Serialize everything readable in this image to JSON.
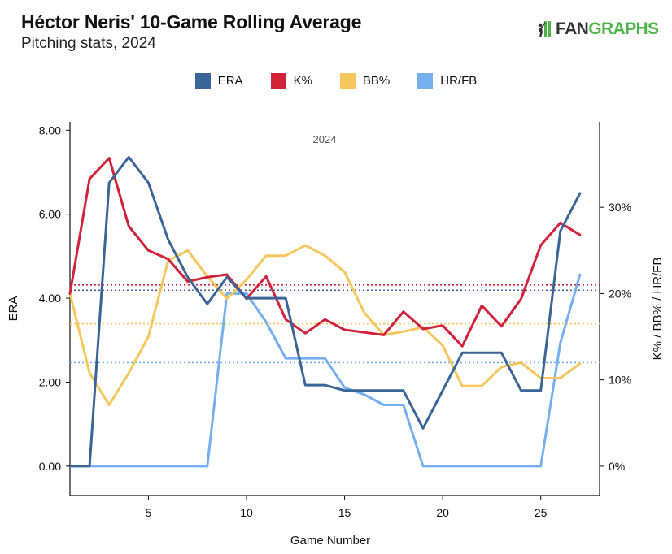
{
  "header": {
    "title": "Héctor Neris' 10-Game Rolling Average",
    "subtitle": "Pitching stats, 2024"
  },
  "logo": {
    "fan": "FAN",
    "graphs": "GRAPHS"
  },
  "colors": {
    "ERA": "#3a6596",
    "K%": "#d1223a",
    "BB%": "#f5c75d",
    "HR/FB": "#75b0f0"
  },
  "chart_data": {
    "type": "line",
    "title": "Héctor Neris' 10-Game Rolling Average",
    "subtitle": "Pitching stats, 2024",
    "annotation": "2024",
    "xlabel": "Game Number",
    "ylabel_left": "ERA",
    "ylabel_right": "K% / BB% / HR/FB",
    "xlim": [
      1,
      28
    ],
    "ylim_left": [
      -0.7,
      8.2
    ],
    "ylim_right": [
      -3.4,
      39.9
    ],
    "xticks": [
      5,
      10,
      15,
      20,
      25
    ],
    "xtick_labels": [
      "5",
      "10",
      "15",
      "20",
      "25"
    ],
    "yticks_left": [
      0,
      2,
      4,
      6,
      8
    ],
    "ytick_labels_left": [
      "0.00",
      "2.00",
      "4.00",
      "6.00",
      "8.00"
    ],
    "yticks_right": [
      0,
      10,
      20,
      30
    ],
    "ytick_labels_right": [
      "0%",
      "10%",
      "20%",
      "30%"
    ],
    "x": [
      1,
      2,
      3,
      4,
      5,
      6,
      7,
      8,
      9,
      10,
      11,
      12,
      13,
      14,
      15,
      16,
      17,
      18,
      19,
      20,
      21,
      22,
      23,
      24,
      25,
      26,
      27
    ],
    "series": [
      {
        "name": "ERA",
        "axis": "left",
        "values": [
          0,
          0,
          6.75,
          7.36,
          6.75,
          5.4,
          4.5,
          3.86,
          4.5,
          4.0,
          4.0,
          4.0,
          1.93,
          1.93,
          1.8,
          1.8,
          1.8,
          1.8,
          0.9,
          1.8,
          2.7,
          2.7,
          2.7,
          1.8,
          1.8,
          5.6,
          6.5
        ]
      },
      {
        "name": "K%",
        "axis": "right",
        "values": [
          20,
          33.3,
          35.7,
          27.8,
          25.0,
          24.0,
          21.4,
          21.9,
          22.2,
          19.4,
          22.0,
          17.0,
          15.4,
          17.0,
          15.8,
          15.5,
          15.2,
          17.9,
          15.9,
          16.3,
          13.9,
          18.6,
          16.2,
          19.4,
          25.6,
          28.2,
          26.8
        ]
      },
      {
        "name": "BB%",
        "axis": "right",
        "values": [
          20,
          10.8,
          7.1,
          10.8,
          15.0,
          23.8,
          25.0,
          22.0,
          19.4,
          21.6,
          24.4,
          24.4,
          25.6,
          24.4,
          22.5,
          17.8,
          15.2,
          15.6,
          16.1,
          14.0,
          9.3,
          9.3,
          11.5,
          12.0,
          10.2,
          10.2,
          11.9
        ]
      },
      {
        "name": "HR/FB",
        "axis": "right",
        "values": [
          0,
          0,
          0,
          0,
          0,
          0,
          0,
          0,
          20,
          20,
          16.7,
          12.5,
          12.5,
          12.5,
          9.1,
          8.3,
          7.1,
          7.1,
          0,
          0,
          0,
          0,
          0,
          0,
          0,
          14.3,
          22.2
        ]
      }
    ],
    "reference_lines": [
      {
        "name": "K%",
        "axis": "right",
        "value": 21.0
      },
      {
        "name": "ERA",
        "axis": "left",
        "value": 4.19
      },
      {
        "name": "BB%",
        "axis": "right",
        "value": 16.5
      },
      {
        "name": "HR/FB",
        "axis": "right",
        "value": 12.0
      }
    ],
    "legend": [
      "ERA",
      "K%",
      "BB%",
      "HR/FB"
    ],
    "legend_position": "top-center"
  }
}
